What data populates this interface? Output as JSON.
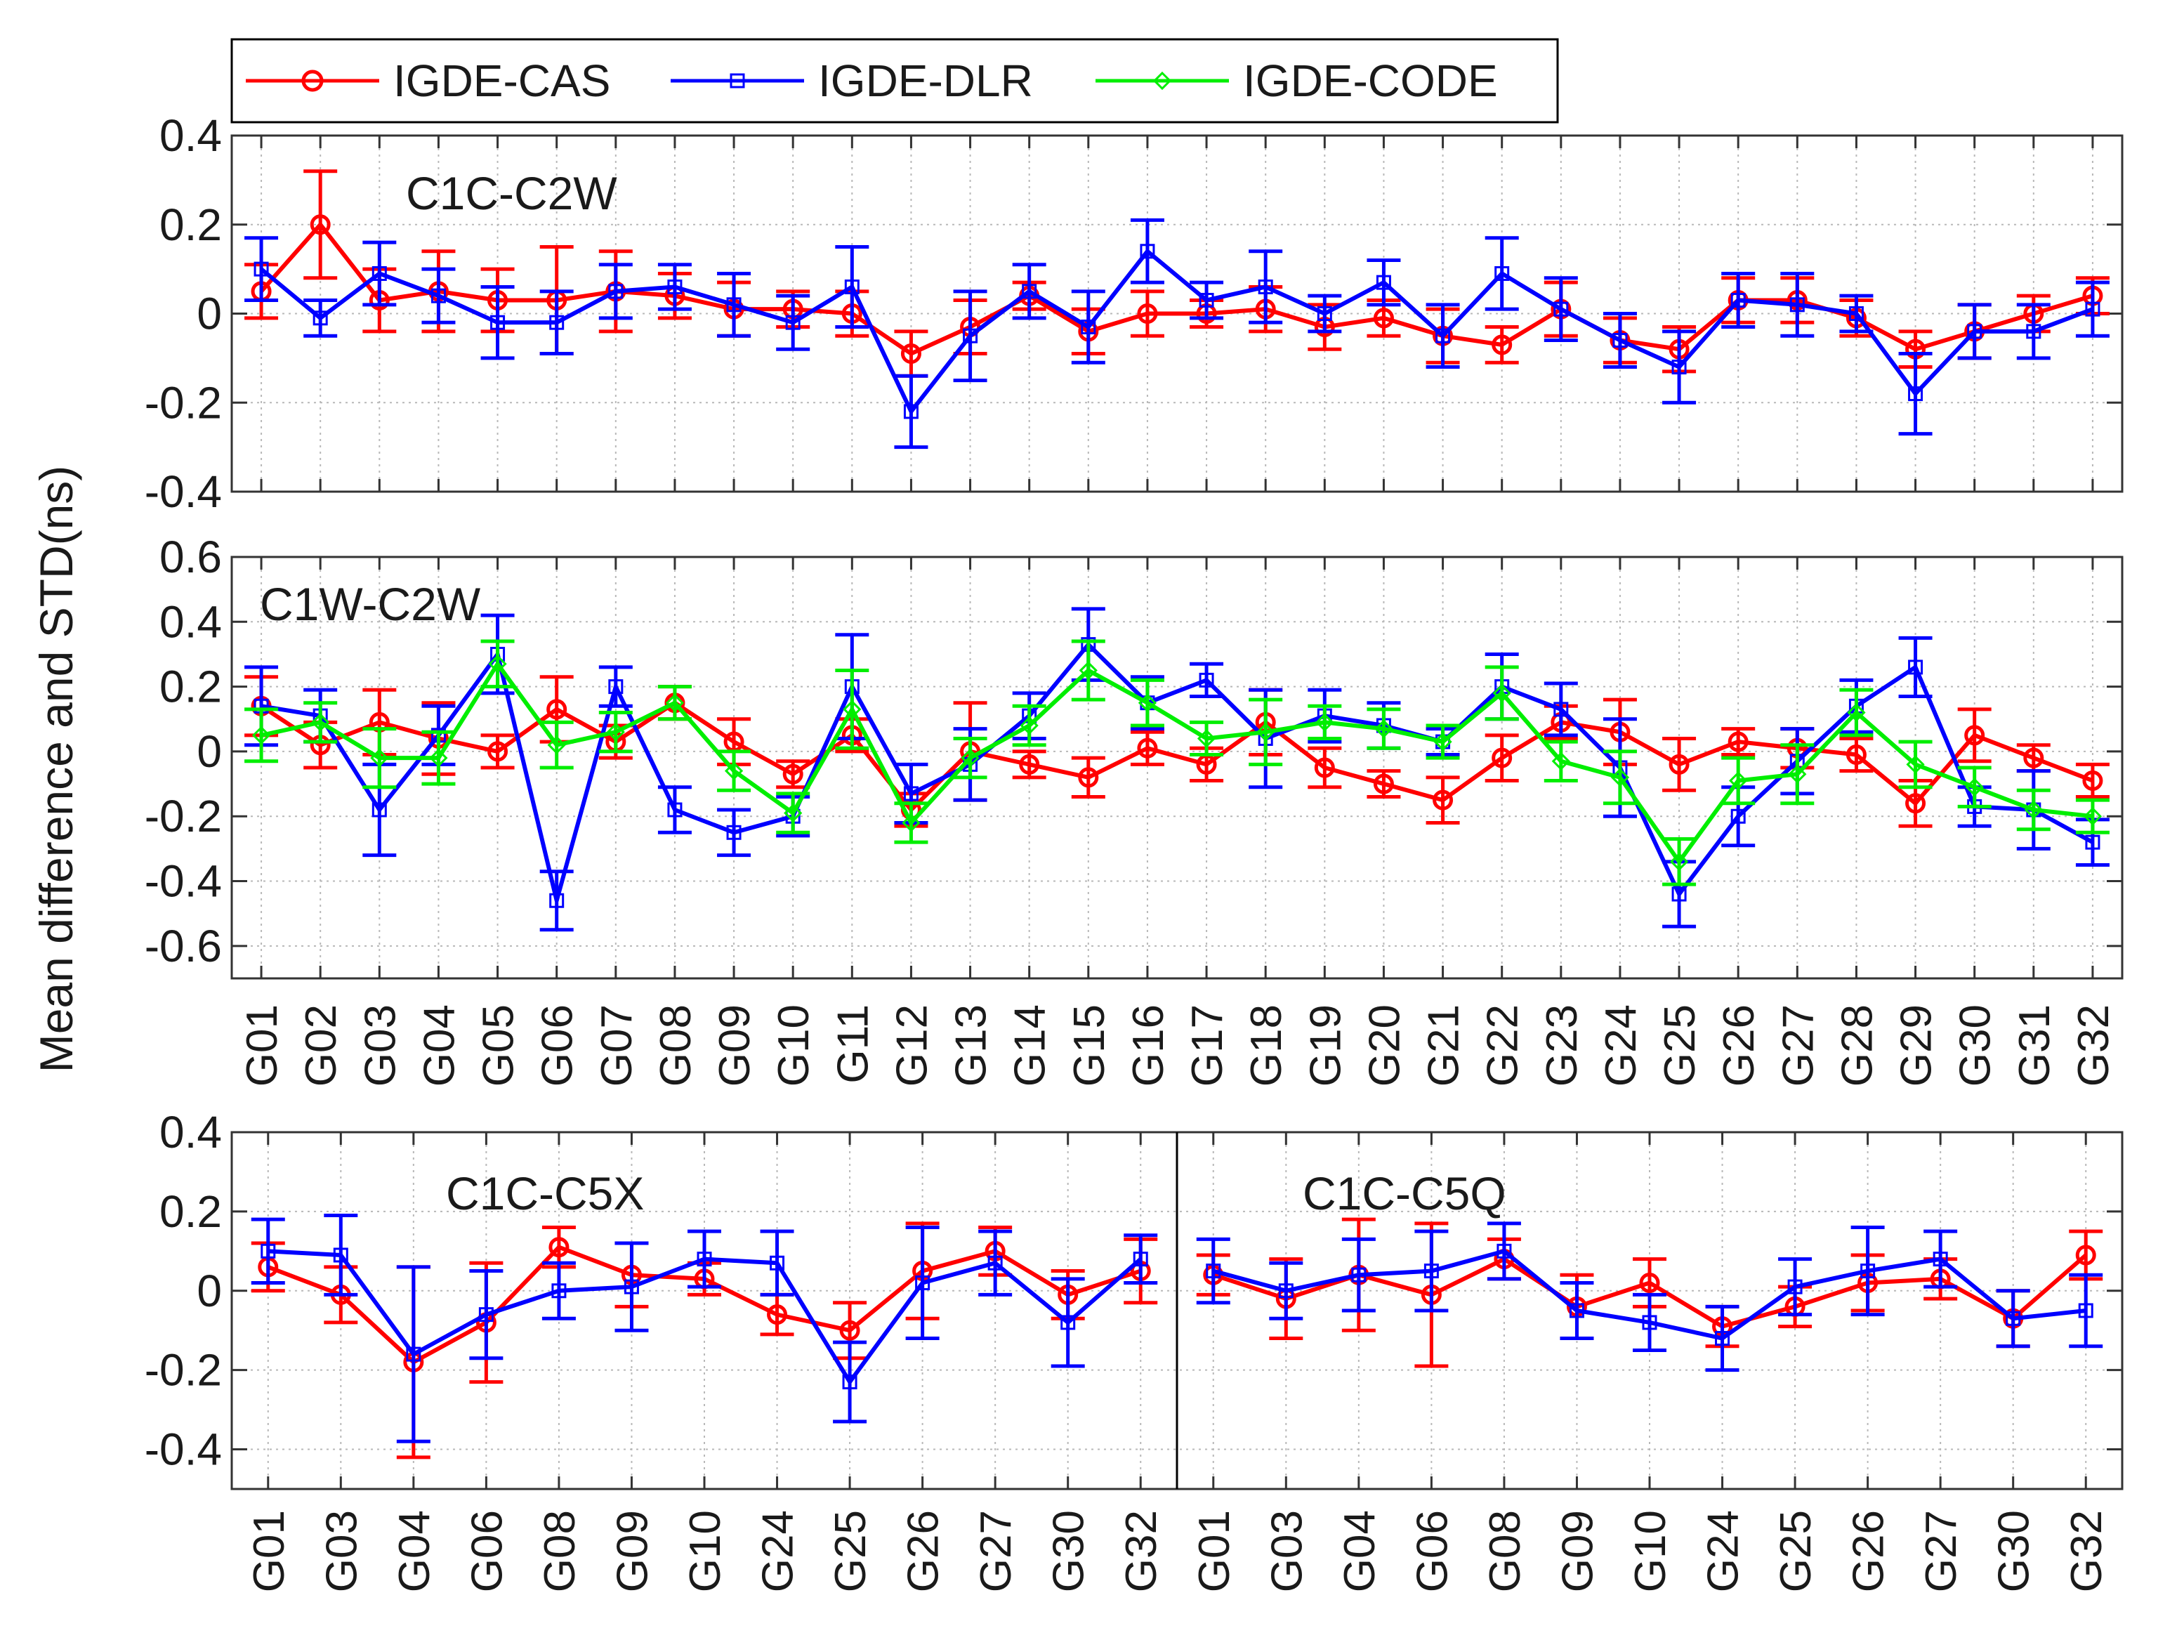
{
  "legend": {
    "entries": [
      {
        "name": "IGDE-CAS",
        "color": "#ff0000",
        "marker": "circle"
      },
      {
        "name": "IGDE-DLR",
        "color": "#0000ff",
        "marker": "square"
      },
      {
        "name": "IGDE-CODE",
        "color": "#00ee00",
        "marker": "diamond"
      }
    ]
  },
  "ylabel": "Mean difference and STD(ns)",
  "chart_data": [
    {
      "id": "p1",
      "type": "line",
      "title": "C1C-C2W",
      "ylabel": "Mean difference and STD(ns)",
      "ylim": [
        -0.4,
        0.4
      ],
      "yticks": [
        -0.4,
        -0.2,
        0,
        0.2,
        0.4
      ],
      "ytick_labels": [
        "-0.4",
        "-0.2",
        "0",
        "0.2",
        "0.4"
      ],
      "grid": true,
      "categories": [
        "G01",
        "G02",
        "G03",
        "G04",
        "G05",
        "G06",
        "G07",
        "G08",
        "G09",
        "G10",
        "G11",
        "G12",
        "G13",
        "G14",
        "G15",
        "G16",
        "G17",
        "G18",
        "G19",
        "G20",
        "G21",
        "G22",
        "G23",
        "G24",
        "G25",
        "G26",
        "G27",
        "G28",
        "G29",
        "G30",
        "G31",
        "G32"
      ],
      "series": [
        {
          "name": "IGDE-CAS",
          "values": [
            0.05,
            0.2,
            0.03,
            0.05,
            0.03,
            0.03,
            0.05,
            0.04,
            0.01,
            0.01,
            0.0,
            -0.09,
            -0.03,
            0.04,
            -0.04,
            0.0,
            0.0,
            0.01,
            -0.03,
            -0.01,
            -0.05,
            -0.07,
            0.01,
            -0.06,
            -0.08,
            0.03,
            0.03,
            -0.01,
            -0.08,
            -0.04,
            0.0,
            0.04
          ],
          "std": [
            0.06,
            0.12,
            0.07,
            0.09,
            0.07,
            0.12,
            0.09,
            0.05,
            0.06,
            0.04,
            0.05,
            0.05,
            0.06,
            0.03,
            0.05,
            0.05,
            0.03,
            0.05,
            0.05,
            0.04,
            0.06,
            0.04,
            0.06,
            0.05,
            0.05,
            0.05,
            0.05,
            0.04,
            0.04,
            0.06,
            0.04,
            0.04
          ]
        },
        {
          "name": "IGDE-DLR",
          "values": [
            0.1,
            -0.01,
            0.09,
            0.04,
            -0.02,
            -0.02,
            0.05,
            0.06,
            0.02,
            -0.02,
            0.06,
            -0.22,
            -0.05,
            0.05,
            -0.03,
            0.14,
            0.03,
            0.06,
            0.0,
            0.07,
            -0.05,
            0.09,
            0.01,
            -0.06,
            -0.12,
            0.03,
            0.02,
            0.0,
            -0.18,
            -0.04,
            -0.04,
            0.01
          ],
          "std": [
            0.07,
            0.04,
            0.07,
            0.06,
            0.08,
            0.07,
            0.06,
            0.05,
            0.07,
            0.06,
            0.09,
            0.08,
            0.1,
            0.06,
            0.08,
            0.07,
            0.04,
            0.08,
            0.04,
            0.05,
            0.07,
            0.08,
            0.07,
            0.06,
            0.08,
            0.06,
            0.07,
            0.04,
            0.09,
            0.06,
            0.06,
            0.06
          ]
        }
      ]
    },
    {
      "id": "p2",
      "type": "line",
      "title": "C1W-C2W",
      "ylim": [
        -0.7,
        0.6
      ],
      "yticks": [
        -0.6,
        -0.4,
        -0.2,
        0,
        0.2,
        0.4,
        0.6
      ],
      "ytick_labels": [
        "-0.6",
        "-0.4",
        "-0.2",
        "0",
        "0.2",
        "0.4",
        "0.6"
      ],
      "grid": true,
      "categories": [
        "G01",
        "G02",
        "G03",
        "G04",
        "G05",
        "G06",
        "G07",
        "G08",
        "G09",
        "G10",
        "G11",
        "G12",
        "G13",
        "G14",
        "G15",
        "G16",
        "G17",
        "G18",
        "G19",
        "G20",
        "G21",
        "G22",
        "G23",
        "G24",
        "G25",
        "G26",
        "G27",
        "G28",
        "G29",
        "G30",
        "G31",
        "G32"
      ],
      "series": [
        {
          "name": "IGDE-CAS",
          "values": [
            0.14,
            0.02,
            0.09,
            0.04,
            0.0,
            0.13,
            0.03,
            0.15,
            0.03,
            -0.07,
            0.05,
            -0.18,
            0.0,
            -0.04,
            -0.08,
            0.01,
            -0.04,
            0.09,
            -0.05,
            -0.1,
            -0.15,
            -0.02,
            0.09,
            0.06,
            -0.04,
            0.03,
            0.01,
            -0.01,
            -0.16,
            0.05,
            -0.02,
            -0.09
          ],
          "std": [
            0.09,
            0.07,
            0.1,
            0.11,
            0.05,
            0.1,
            0.05,
            0.05,
            0.07,
            0.04,
            0.05,
            0.05,
            0.15,
            0.04,
            0.06,
            0.05,
            0.05,
            0.1,
            0.06,
            0.04,
            0.07,
            0.07,
            0.05,
            0.1,
            0.08,
            0.04,
            0.06,
            0.05,
            0.07,
            0.08,
            0.04,
            0.05
          ]
        },
        {
          "name": "IGDE-DLR",
          "values": [
            0.14,
            0.11,
            -0.18,
            0.05,
            0.3,
            -0.46,
            0.2,
            -0.18,
            -0.25,
            -0.2,
            0.2,
            -0.13,
            -0.04,
            0.11,
            0.33,
            0.15,
            0.22,
            0.04,
            0.11,
            0.08,
            0.03,
            0.2,
            0.13,
            -0.05,
            -0.44,
            -0.2,
            -0.03,
            0.14,
            0.26,
            -0.17,
            -0.18,
            -0.28
          ],
          "std": [
            0.12,
            0.08,
            0.14,
            0.09,
            0.12,
            0.09,
            0.06,
            0.07,
            0.07,
            0.06,
            0.16,
            0.09,
            0.11,
            0.07,
            0.11,
            0.08,
            0.05,
            0.15,
            0.08,
            0.07,
            0.04,
            0.1,
            0.08,
            0.15,
            0.1,
            0.09,
            0.1,
            0.08,
            0.09,
            0.06,
            0.12,
            0.07
          ]
        },
        {
          "name": "IGDE-CODE",
          "values": [
            0.05,
            0.09,
            -0.02,
            -0.02,
            0.27,
            0.02,
            0.06,
            0.15,
            -0.06,
            -0.19,
            0.13,
            -0.22,
            -0.02,
            0.08,
            0.25,
            0.15,
            0.04,
            0.06,
            0.09,
            0.07,
            0.03,
            0.18,
            -0.03,
            -0.08,
            -0.34,
            -0.09,
            -0.07,
            0.12,
            -0.04,
            -0.11,
            -0.18,
            -0.2
          ],
          "std": [
            0.08,
            0.06,
            0.09,
            0.08,
            0.07,
            0.07,
            0.06,
            0.05,
            0.06,
            0.06,
            0.12,
            0.06,
            0.06,
            0.06,
            0.09,
            0.07,
            0.05,
            0.1,
            0.05,
            0.06,
            0.05,
            0.08,
            0.06,
            0.08,
            0.07,
            0.07,
            0.09,
            0.07,
            0.07,
            0.06,
            0.06,
            0.05
          ]
        }
      ]
    },
    {
      "id": "p3",
      "type": "line",
      "titles": [
        {
          "text": "C1C-C5X"
        },
        {
          "text": "C1C-C5Q"
        }
      ],
      "ylim": [
        -0.5,
        0.4
      ],
      "yticks": [
        -0.4,
        -0.2,
        0,
        0.2,
        0.4
      ],
      "ytick_labels": [
        "-0.4",
        "-0.2",
        "0",
        "0.2",
        "0.4"
      ],
      "grid": true,
      "categories": [
        "G01",
        "G03",
        "G04",
        "G06",
        "G08",
        "G09",
        "G10",
        "G24",
        "G25",
        "G26",
        "G27",
        "G30",
        "G32",
        "G01",
        "G03",
        "G04",
        "G06",
        "G08",
        "G09",
        "G10",
        "G24",
        "G25",
        "G26",
        "G27",
        "G30",
        "G32"
      ],
      "divider_after_index": 12,
      "series": [
        {
          "name": "IGDE-CAS",
          "values": [
            0.06,
            -0.01,
            -0.18,
            -0.08,
            0.11,
            0.04,
            0.03,
            -0.06,
            -0.1,
            0.05,
            0.1,
            -0.01,
            0.05,
            0.04,
            -0.02,
            0.04,
            -0.01,
            0.08,
            -0.04,
            0.02,
            -0.09,
            -0.04,
            0.02,
            0.03,
            -0.07,
            0.09
          ],
          "std": [
            0.06,
            0.07,
            0.24,
            0.15,
            0.05,
            0.08,
            0.04,
            0.05,
            0.07,
            0.12,
            0.06,
            0.06,
            0.08,
            0.05,
            0.1,
            0.14,
            0.18,
            0.05,
            0.08,
            0.06,
            0.05,
            0.05,
            0.07,
            0.05,
            0.07,
            0.06
          ]
        },
        {
          "name": "IGDE-DLR",
          "values": [
            0.1,
            0.09,
            -0.16,
            -0.06,
            0.0,
            0.01,
            0.08,
            0.07,
            -0.23,
            0.02,
            0.07,
            -0.08,
            0.08,
            0.05,
            0.0,
            0.04,
            0.05,
            0.1,
            -0.05,
            -0.08,
            -0.12,
            0.01,
            0.05,
            0.08,
            -0.07,
            -0.05
          ],
          "std": [
            0.08,
            0.1,
            0.22,
            0.11,
            0.07,
            0.11,
            0.07,
            0.08,
            0.1,
            0.14,
            0.08,
            0.11,
            0.06,
            0.08,
            0.07,
            0.09,
            0.1,
            0.07,
            0.07,
            0.07,
            0.08,
            0.07,
            0.11,
            0.07,
            0.07,
            0.09
          ]
        }
      ]
    }
  ]
}
